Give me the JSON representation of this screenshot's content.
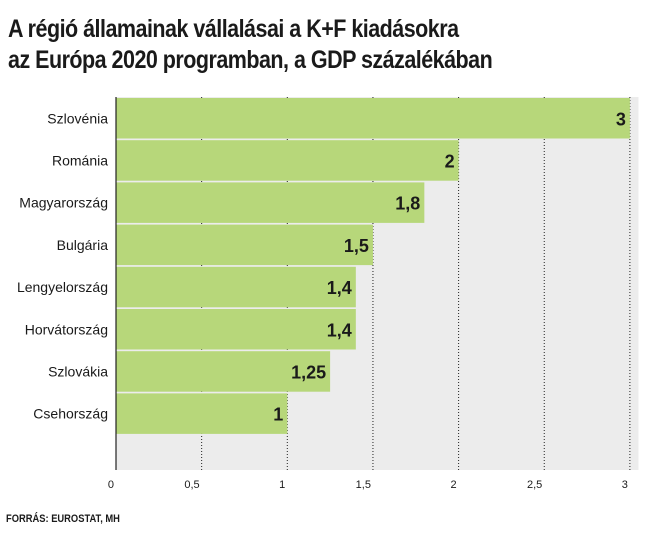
{
  "title_lines": [
    "A régió államainak vállalásai a K+F kiadásokra",
    "az Európa 2020 programban, a GDP százalékában"
  ],
  "source": "FORRÁS: EUROSTAT, MH",
  "colors": {
    "bar": "#b7d77a",
    "panel": "#ececec",
    "grid": "#222222",
    "text": "#1a1a1a"
  },
  "chart_data": {
    "type": "bar",
    "orientation": "horizontal",
    "categories": [
      "Szlovénia",
      "Románia",
      "Magyarország",
      "Bulgária",
      "Lengyelország",
      "Horvátország",
      "Szlovákia",
      "Csehország"
    ],
    "values": [
      3,
      2,
      1.8,
      1.5,
      1.4,
      1.4,
      1.25,
      1
    ],
    "value_labels": [
      "3",
      "2",
      "1,8",
      "1,5",
      "1,4",
      "1,4",
      "1,25",
      "1"
    ],
    "x_ticks": [
      0,
      0.5,
      1,
      1.5,
      2,
      2.5,
      3
    ],
    "x_tick_labels": [
      "0",
      "0,5",
      "1",
      "1,5",
      "2",
      "2,5",
      "3"
    ],
    "xlim": [
      0,
      3.05
    ],
    "grid": "vertical dotted"
  }
}
